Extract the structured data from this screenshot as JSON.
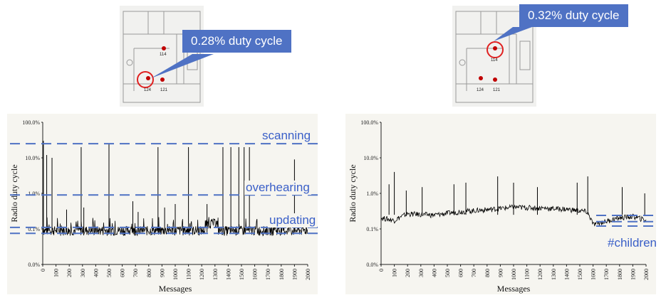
{
  "callouts": {
    "left": "0.28% duty cycle",
    "right": "0.32% duty cycle"
  },
  "floorplan_labels": {
    "left": [
      "114",
      "124",
      "121"
    ],
    "right": [
      "114",
      "124",
      "121"
    ]
  },
  "annotations": {
    "left": [
      "scanning",
      "overhearing",
      "updating"
    ],
    "right": [
      "#children"
    ]
  },
  "colors": {
    "accent": "#4f72c4",
    "annotation": "#3a5fc8",
    "highlight_circle": "#e02020",
    "series": "#000000"
  },
  "chart_data": [
    {
      "type": "line",
      "scale_y": "log",
      "xlabel": "Messages",
      "ylabel": "Radio duty cycle",
      "xlim": [
        0,
        2000
      ],
      "ylim_ticks": [
        "0.0%",
        "0.1%",
        "1.0%",
        "10.0%",
        "100.0%"
      ],
      "xticks": [
        0,
        100,
        200,
        300,
        400,
        500,
        600,
        700,
        800,
        900,
        1000,
        1100,
        1200,
        1300,
        1400,
        1500,
        1600,
        1700,
        1800,
        1900,
        2000
      ],
      "reference_lines_pct": [
        25,
        0.9,
        0.11,
        0.075
      ],
      "series": [
        {
          "baseline_pct": 0.08,
          "spikes": [
            [
              5,
              30
            ],
            [
              30,
              12
            ],
            [
              70,
              10
            ],
            [
              180,
              0.35
            ],
            [
              290,
              20
            ],
            [
              310,
              0.4
            ],
            [
              500,
              25
            ],
            [
              680,
              0.6
            ],
            [
              720,
              0.3
            ],
            [
              870,
              20
            ],
            [
              920,
              0.4
            ],
            [
              1000,
              0.5
            ],
            [
              1100,
              20
            ],
            [
              1240,
              0.5
            ],
            [
              1360,
              20
            ],
            [
              1420,
              20
            ],
            [
              1480,
              20
            ],
            [
              1520,
              20
            ],
            [
              1560,
              20
            ],
            [
              1900,
              9
            ]
          ]
        }
      ]
    },
    {
      "type": "line",
      "scale_y": "log",
      "xlabel": "Messages",
      "ylabel": "Radio duty cycle",
      "xlim": [
        0,
        2000
      ],
      "ylim_ticks": [
        "0.0%",
        "0.1%",
        "1.0%",
        "10.0%",
        "100.0%"
      ],
      "xticks": [
        0,
        100,
        200,
        300,
        400,
        500,
        600,
        700,
        800,
        900,
        1000,
        1100,
        1200,
        1300,
        1400,
        1500,
        1600,
        1700,
        1800,
        1900,
        2000
      ],
      "reference_lines_pct": [
        0.24,
        0.16,
        0.12
      ],
      "series": [
        {
          "levels": [
            [
              0,
              0.2
            ],
            [
              100,
              0.17
            ],
            [
              200,
              0.26
            ],
            [
              400,
              0.24
            ],
            [
              600,
              0.3
            ],
            [
              800,
              0.34
            ],
            [
              1000,
              0.4
            ],
            [
              1200,
              0.38
            ],
            [
              1400,
              0.35
            ],
            [
              1550,
              0.3
            ],
            [
              1600,
              0.13
            ],
            [
              1700,
              0.16
            ],
            [
              1800,
              0.2
            ],
            [
              1900,
              0.22
            ],
            [
              2000,
              0.17
            ]
          ],
          "spikes": [
            [
              60,
              1.8
            ],
            [
              100,
              4
            ],
            [
              190,
              1.2
            ],
            [
              310,
              1.5
            ],
            [
              550,
              1.8
            ],
            [
              640,
              2
            ],
            [
              880,
              3
            ],
            [
              1000,
              2
            ],
            [
              1180,
              1.5
            ],
            [
              1480,
              2
            ],
            [
              1560,
              3
            ],
            [
              1820,
              1.5
            ],
            [
              1990,
              1
            ]
          ]
        }
      ]
    }
  ]
}
